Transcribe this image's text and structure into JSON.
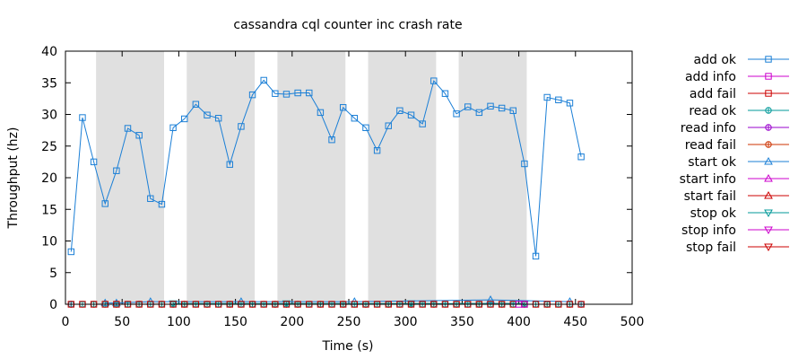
{
  "chart_data": {
    "type": "line",
    "title": "cassandra cql counter inc crash rate",
    "xlabel": "Time (s)",
    "ylabel": "Throughput (hz)",
    "xlim": [
      0,
      500
    ],
    "ylim": [
      0,
      40
    ],
    "xticks": [
      0,
      50,
      100,
      150,
      200,
      250,
      300,
      350,
      400,
      450,
      500
    ],
    "yticks": [
      0,
      5,
      10,
      15,
      20,
      25,
      30,
      35,
      40
    ],
    "grid": false,
    "legend_position": "right",
    "shaded_intervals": [
      [
        27,
        87
      ],
      [
        107,
        167
      ],
      [
        187,
        247
      ],
      [
        267,
        327
      ],
      [
        347,
        407
      ]
    ],
    "series": [
      {
        "name": "add ok",
        "color": "#1b7fd6",
        "marker": "square",
        "line": true,
        "points": [
          [
            5,
            8.3
          ],
          [
            15,
            29.5
          ],
          [
            25,
            22.5
          ],
          [
            35,
            15.9
          ],
          [
            45,
            21.1
          ],
          [
            55,
            27.8
          ],
          [
            65,
            26.7
          ],
          [
            75,
            16.7
          ],
          [
            85,
            15.8
          ],
          [
            95,
            27.9
          ],
          [
            105,
            29.3
          ],
          [
            115,
            31.6
          ],
          [
            125,
            29.9
          ],
          [
            135,
            29.4
          ],
          [
            145,
            22.1
          ],
          [
            155,
            28.1
          ],
          [
            165,
            33.1
          ],
          [
            175,
            35.4
          ],
          [
            185,
            33.3
          ],
          [
            195,
            33.2
          ],
          [
            205,
            33.4
          ],
          [
            215,
            33.4
          ],
          [
            225,
            30.3
          ],
          [
            235,
            26.0
          ],
          [
            245,
            31.1
          ],
          [
            255,
            29.4
          ],
          [
            265,
            27.9
          ],
          [
            275,
            24.3
          ],
          [
            285,
            28.2
          ],
          [
            295,
            30.6
          ],
          [
            305,
            29.9
          ],
          [
            315,
            28.5
          ],
          [
            325,
            35.3
          ],
          [
            335,
            33.3
          ],
          [
            345,
            30.1
          ],
          [
            355,
            31.2
          ],
          [
            365,
            30.3
          ],
          [
            375,
            31.3
          ],
          [
            385,
            31.0
          ],
          [
            395,
            30.6
          ],
          [
            405,
            22.2
          ],
          [
            415,
            7.6
          ],
          [
            425,
            32.7
          ],
          [
            435,
            32.3
          ],
          [
            445,
            31.8
          ],
          [
            455,
            23.3
          ]
        ]
      },
      {
        "name": "add info",
        "color": "#cc00cc",
        "marker": "square",
        "line": true,
        "points": [
          [
            400,
            0
          ],
          [
            405,
            0
          ]
        ]
      },
      {
        "name": "add fail",
        "color": "#cc0000",
        "marker": "square",
        "line": true,
        "points": [
          [
            5,
            0
          ],
          [
            15,
            0
          ],
          [
            25,
            0
          ],
          [
            35,
            0
          ],
          [
            45,
            0
          ],
          [
            55,
            0
          ],
          [
            65,
            0
          ],
          [
            75,
            0
          ],
          [
            85,
            0
          ],
          [
            95,
            0
          ],
          [
            105,
            0
          ],
          [
            115,
            0
          ],
          [
            125,
            0
          ],
          [
            135,
            0
          ],
          [
            145,
            0
          ],
          [
            155,
            0
          ],
          [
            165,
            0
          ],
          [
            175,
            0
          ],
          [
            185,
            0
          ],
          [
            195,
            0
          ],
          [
            205,
            0
          ],
          [
            215,
            0
          ],
          [
            225,
            0
          ],
          [
            235,
            0
          ],
          [
            245,
            0
          ],
          [
            255,
            0
          ],
          [
            265,
            0
          ],
          [
            275,
            0
          ],
          [
            285,
            0
          ],
          [
            295,
            0
          ],
          [
            305,
            0
          ],
          [
            315,
            0
          ],
          [
            325,
            0
          ],
          [
            335,
            0
          ],
          [
            345,
            0
          ],
          [
            355,
            0
          ],
          [
            365,
            0
          ],
          [
            375,
            0
          ],
          [
            385,
            0
          ],
          [
            395,
            0
          ],
          [
            405,
            0
          ],
          [
            415,
            0
          ],
          [
            425,
            0
          ],
          [
            435,
            0
          ],
          [
            445,
            0
          ],
          [
            455,
            0
          ]
        ]
      },
      {
        "name": "read ok",
        "color": "#009999",
        "marker": "circle-plus",
        "line": true,
        "points": [
          [
            5,
            0
          ],
          [
            15,
            0
          ],
          [
            25,
            0
          ],
          [
            35,
            0
          ],
          [
            45,
            0
          ],
          [
            55,
            0
          ],
          [
            65,
            0
          ],
          [
            75,
            0
          ],
          [
            85,
            0
          ],
          [
            95,
            0
          ],
          [
            105,
            0
          ],
          [
            115,
            0
          ],
          [
            125,
            0
          ],
          [
            135,
            0
          ],
          [
            145,
            0
          ],
          [
            155,
            0
          ],
          [
            165,
            0
          ],
          [
            175,
            0
          ],
          [
            185,
            0
          ],
          [
            195,
            0
          ],
          [
            205,
            0
          ],
          [
            215,
            0
          ],
          [
            225,
            0
          ],
          [
            235,
            0
          ],
          [
            245,
            0
          ],
          [
            255,
            0
          ],
          [
            265,
            0
          ],
          [
            275,
            0
          ],
          [
            285,
            0
          ],
          [
            295,
            0
          ],
          [
            305,
            0
          ],
          [
            315,
            0
          ],
          [
            325,
            0
          ],
          [
            335,
            0
          ],
          [
            345,
            0
          ],
          [
            355,
            0
          ],
          [
            365,
            0
          ],
          [
            375,
            0
          ],
          [
            385,
            0
          ],
          [
            395,
            0
          ],
          [
            405,
            0
          ],
          [
            415,
            0
          ],
          [
            425,
            0
          ],
          [
            435,
            0
          ],
          [
            445,
            0
          ],
          [
            455,
            0
          ]
        ]
      },
      {
        "name": "read info",
        "color": "#9900cc",
        "marker": "circle-plus",
        "line": true,
        "points": [
          [
            5,
            0
          ],
          [
            455,
            0
          ]
        ]
      },
      {
        "name": "read fail",
        "color": "#cc3300",
        "marker": "circle-plus",
        "line": true,
        "points": [
          [
            5,
            0
          ],
          [
            25,
            0
          ],
          [
            45,
            0
          ],
          [
            65,
            0
          ],
          [
            85,
            0
          ],
          [
            105,
            0
          ],
          [
            125,
            0
          ],
          [
            145,
            0
          ],
          [
            165,
            0
          ],
          [
            185,
            0
          ],
          [
            205,
            0
          ],
          [
            225,
            0
          ],
          [
            245,
            0
          ],
          [
            265,
            0
          ],
          [
            285,
            0
          ],
          [
            305,
            0
          ],
          [
            325,
            0
          ],
          [
            345,
            0
          ],
          [
            365,
            0
          ],
          [
            385,
            0
          ],
          [
            405,
            0
          ],
          [
            425,
            0
          ],
          [
            445,
            0
          ]
        ]
      },
      {
        "name": "start ok",
        "color": "#1b7fd6",
        "marker": "triangle-up",
        "line": true,
        "points": [
          [
            35,
            0.2
          ],
          [
            45,
            0.2
          ],
          [
            75,
            0.4
          ],
          [
            155,
            0.4
          ],
          [
            255,
            0.4
          ],
          [
            375,
            0.7
          ],
          [
            445,
            0.4
          ]
        ]
      },
      {
        "name": "start info",
        "color": "#cc00cc",
        "marker": "triangle-up",
        "line": true,
        "points": []
      },
      {
        "name": "start fail",
        "color": "#cc0000",
        "marker": "triangle-up",
        "line": true,
        "points": []
      },
      {
        "name": "stop ok",
        "color": "#009999",
        "marker": "triangle-down",
        "line": true,
        "points": [
          [
            95,
            0.1
          ],
          [
            195,
            0.1
          ],
          [
            305,
            0.1
          ],
          [
            405,
            0.1
          ]
        ]
      },
      {
        "name": "stop info",
        "color": "#cc00cc",
        "marker": "triangle-down",
        "line": true,
        "points": []
      },
      {
        "name": "stop fail",
        "color": "#cc0000",
        "marker": "triangle-down",
        "line": true,
        "points": []
      }
    ]
  }
}
